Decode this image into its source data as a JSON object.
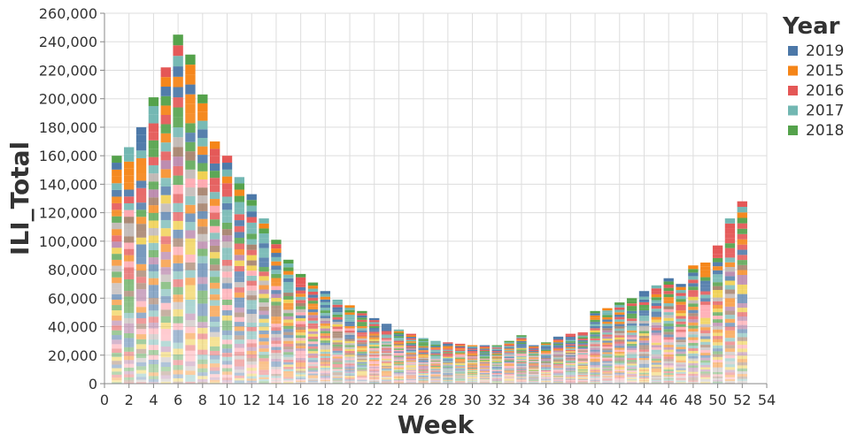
{
  "chart_data": {
    "type": "bar",
    "stacked": true,
    "xlabel": "Week",
    "ylabel": "ILI_Total",
    "xlim": [
      0,
      54
    ],
    "ylim": [
      0,
      260000
    ],
    "x_ticks": [
      0,
      2,
      4,
      6,
      8,
      10,
      12,
      14,
      16,
      18,
      20,
      22,
      24,
      26,
      28,
      30,
      32,
      34,
      36,
      38,
      40,
      42,
      44,
      46,
      48,
      50,
      52,
      54
    ],
    "y_ticks": [
      0,
      20000,
      40000,
      60000,
      80000,
      100000,
      120000,
      140000,
      160000,
      180000,
      200000,
      220000,
      240000,
      260000
    ],
    "y_tick_labels": [
      "0",
      "20,000",
      "40,000",
      "60,000",
      "80,000",
      "100,000",
      "120,000",
      "140,000",
      "160,000",
      "180,000",
      "200,000",
      "220,000",
      "240,000",
      "260,000"
    ],
    "grid": true,
    "legend": {
      "title": "Year",
      "position": "right",
      "entries": [
        {
          "name": "2019",
          "color": "#4c78a8"
        },
        {
          "name": "2015",
          "color": "#f58518"
        },
        {
          "name": "2016",
          "color": "#e45756"
        },
        {
          "name": "2017",
          "color": "#72b7b2"
        },
        {
          "name": "2018",
          "color": "#54a24b"
        }
      ]
    },
    "weeks": [
      1,
      2,
      3,
      4,
      5,
      6,
      7,
      8,
      9,
      10,
      11,
      12,
      13,
      14,
      15,
      16,
      17,
      18,
      19,
      20,
      21,
      22,
      23,
      24,
      25,
      26,
      27,
      28,
      29,
      30,
      31,
      32,
      33,
      34,
      35,
      36,
      37,
      38,
      39,
      40,
      41,
      42,
      43,
      44,
      45,
      46,
      47,
      48,
      49,
      50,
      51,
      52
    ],
    "totals": [
      160000,
      166000,
      180000,
      201000,
      222000,
      245000,
      231000,
      203000,
      170000,
      160000,
      145000,
      133000,
      116000,
      101000,
      87000,
      77000,
      71000,
      65000,
      59000,
      55000,
      51000,
      46000,
      42000,
      38000,
      35000,
      32000,
      30000,
      29000,
      28000,
      27000,
      27000,
      27000,
      30000,
      34000,
      27000,
      29000,
      33000,
      35000,
      36000,
      51000,
      53000,
      57000,
      60000,
      65000,
      69000,
      74000,
      70000,
      83000,
      85000,
      97000,
      116000,
      128000
    ]
  }
}
